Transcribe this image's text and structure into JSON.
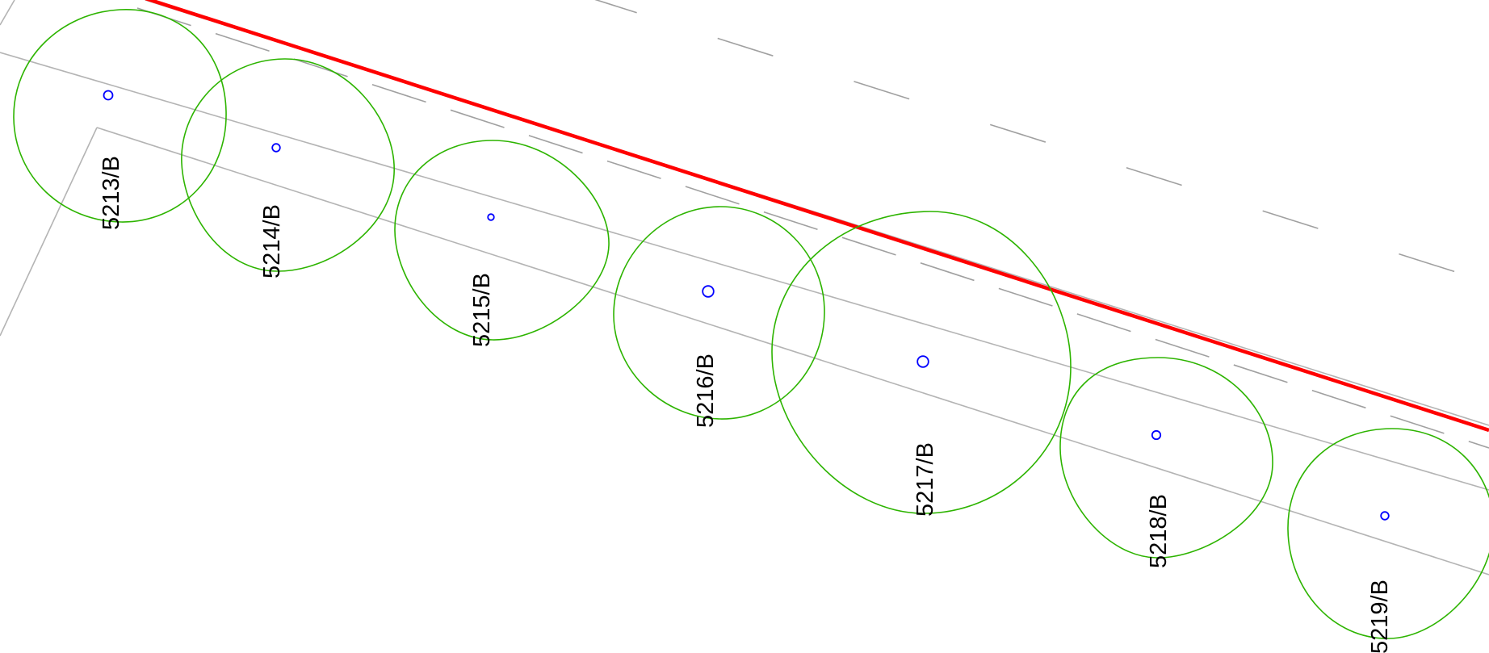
{
  "colors": {
    "background": "#ffffff",
    "boundary_line": "#ff0000",
    "canopy_outline": "#2db400",
    "trunk_marker": "#0000ff",
    "kerb_lines": "#b4b4b4",
    "dashed_lines": "#a0a0a0",
    "label_text": "#000000"
  },
  "trees": [
    {
      "id": "5213/B"
    },
    {
      "id": "5214/B"
    },
    {
      "id": "5215/B"
    },
    {
      "id": "5216/B"
    },
    {
      "id": "5217/B"
    },
    {
      "id": "5218/B"
    },
    {
      "id": "5219/B"
    }
  ]
}
